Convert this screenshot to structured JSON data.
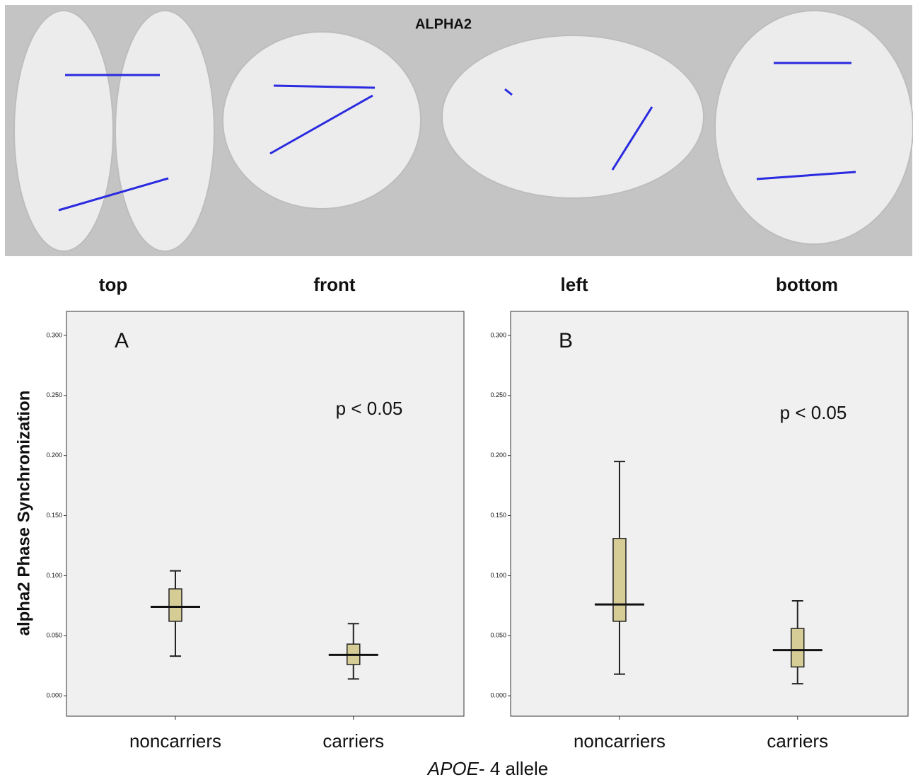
{
  "figure": {
    "title": "ALPHA2",
    "views": [
      "top",
      "front",
      "left",
      "bottom"
    ],
    "ylabel": "alpha2 Phase Synchronization",
    "xlabel": [
      "APOE",
      "- 4 allele"
    ]
  },
  "chart_data": [
    {
      "type": "box",
      "panel_label": "A",
      "annotation": "p < 0.05",
      "categories": [
        "noncarriers",
        "carriers"
      ],
      "color": "#d6cc96",
      "boxes": [
        {
          "whislo": 0.033,
          "q1": 0.062,
          "med": 0.074,
          "q3": 0.089,
          "whishi": 0.104
        },
        {
          "whislo": 0.014,
          "q1": 0.026,
          "med": 0.034,
          "q3": 0.043,
          "whishi": 0.06
        }
      ],
      "ylim": [
        -0.017,
        0.32
      ],
      "yticks": [
        {
          "value": 0,
          "label": "0.000"
        },
        {
          "value": 0.05,
          "label": "0.050"
        },
        {
          "value": 0.1,
          "label": "0.100"
        },
        {
          "value": 0.15,
          "label": "0.150"
        },
        {
          "value": 0.2,
          "label": "0.200"
        },
        {
          "value": 0.25,
          "label": "0.250"
        },
        {
          "value": 0.3,
          "label": "0.300"
        }
      ]
    },
    {
      "type": "box",
      "panel_label": "B",
      "annotation": "p < 0.05",
      "categories": [
        "noncarriers",
        "carriers"
      ],
      "color": "#d6cc96",
      "boxes": [
        {
          "whislo": 0.018,
          "q1": 0.062,
          "med": 0.076,
          "q3": 0.131,
          "whishi": 0.195
        },
        {
          "whislo": 0.01,
          "q1": 0.024,
          "med": 0.038,
          "q3": 0.056,
          "whishi": 0.079
        }
      ],
      "ylim": [
        -0.017,
        0.32
      ],
      "yticks": [
        {
          "value": 0,
          "label": "0.000"
        },
        {
          "value": 0.05,
          "label": "0.050"
        },
        {
          "value": 0.1,
          "label": "0.100"
        },
        {
          "value": 0.15,
          "label": "0.150"
        },
        {
          "value": 0.2,
          "label": "0.200"
        },
        {
          "value": 0.25,
          "label": "0.250"
        },
        {
          "value": 0.3,
          "label": "0.300"
        }
      ]
    }
  ]
}
